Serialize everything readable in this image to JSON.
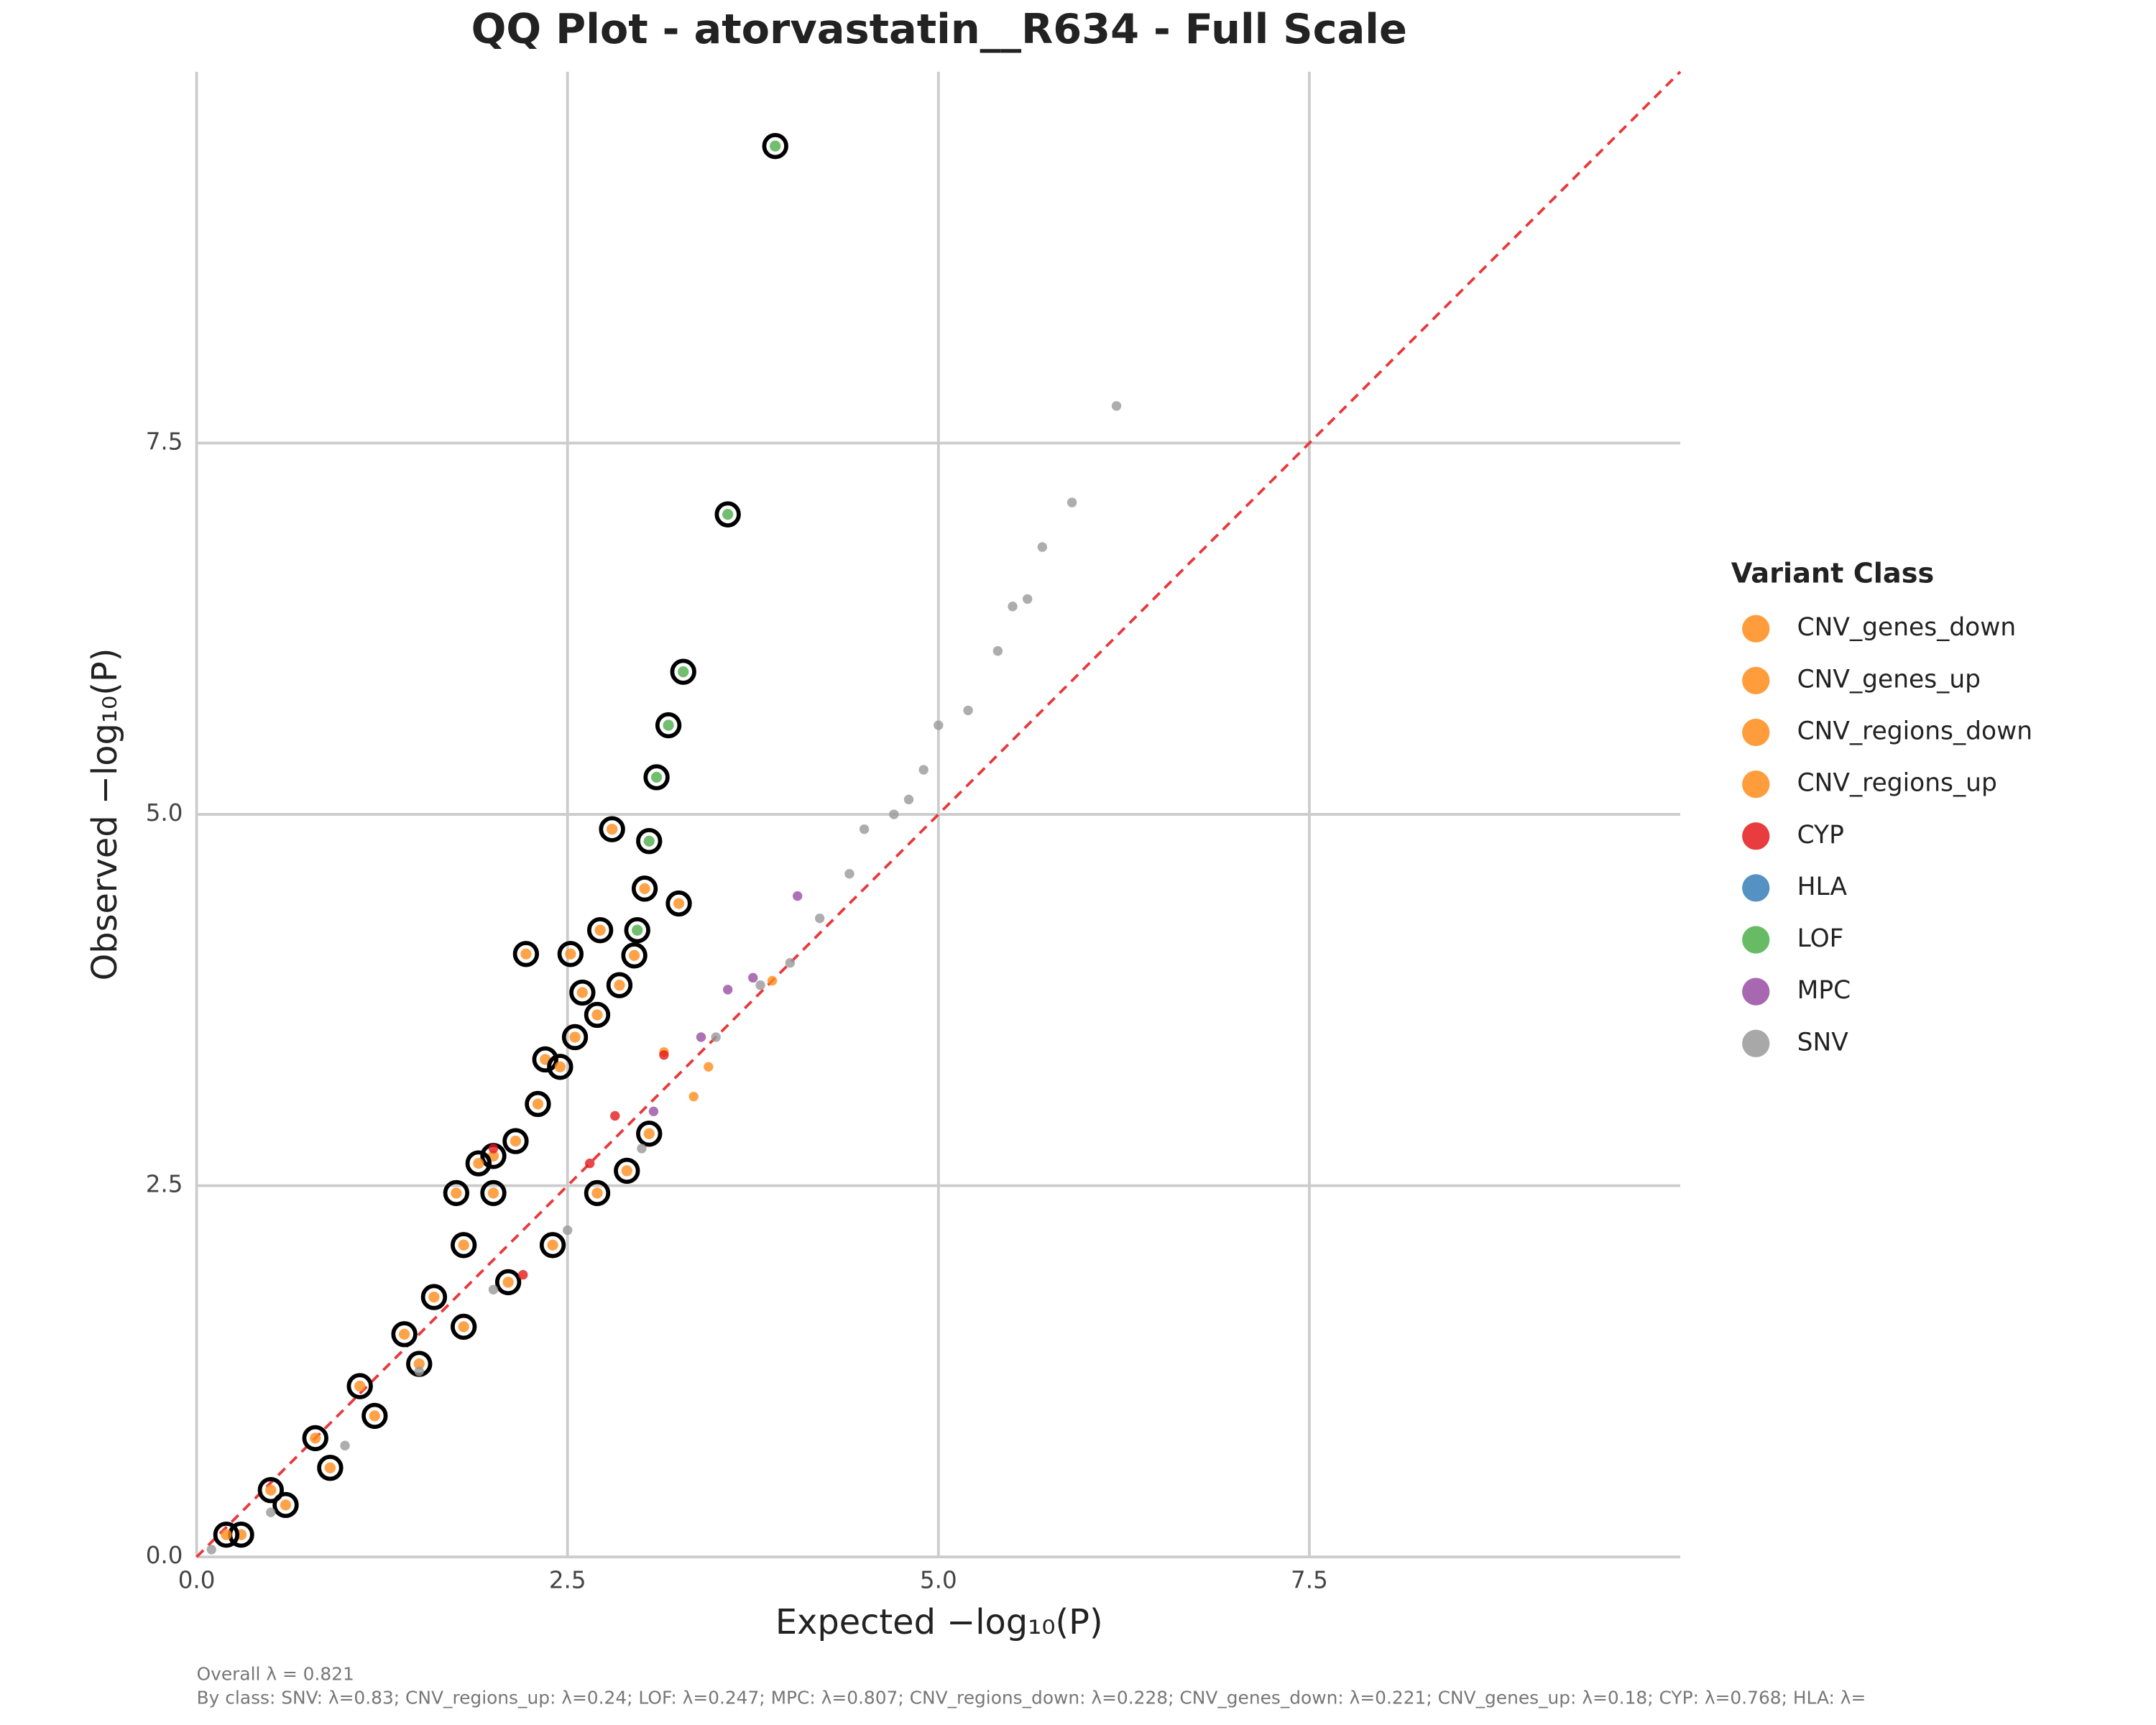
{
  "chart_data": {
    "type": "scatter",
    "title": "QQ Plot - atorvastatin__R634 - Full Scale",
    "xlabel": "Expected −log₁₀(P)",
    "ylabel": "Observed −log₁₀(P)",
    "xlim": [
      0,
      10
    ],
    "ylim": [
      0,
      10
    ],
    "xticks": [
      {
        "value": 0,
        "label": "0.0"
      },
      {
        "value": 2.5,
        "label": "2.5"
      },
      {
        "value": 5,
        "label": "5.0"
      },
      {
        "value": 7.5,
        "label": "7.5"
      }
    ],
    "yticks": [
      {
        "value": 0,
        "label": "0.0"
      },
      {
        "value": 2.5,
        "label": "2.5"
      },
      {
        "value": 5,
        "label": "5.0"
      },
      {
        "value": 7.5,
        "label": "7.5"
      }
    ],
    "grid": true,
    "reference_line": true,
    "legend_title": "Variant Class",
    "legend_position": "right",
    "series": [
      {
        "name": "CNV_genes_down",
        "color": "#ff8c1a",
        "outlined": true,
        "x": [
          2.8,
          3.02,
          3.25,
          2.22,
          2.52,
          2.72,
          2.0,
          1.75,
          1.9,
          2.35,
          2.6
        ],
        "values": [
          4.9,
          4.5,
          4.4,
          4.06,
          4.06,
          4.22,
          2.7,
          2.45,
          2.65,
          3.35,
          3.8
        ]
      },
      {
        "name": "CNV_genes_up",
        "color": "#ff8c1a",
        "outlined": true,
        "x": [
          0.3,
          0.6,
          0.9,
          1.2,
          1.5,
          1.8,
          2.1,
          2.4,
          2.7,
          2.9,
          3.05
        ],
        "values": [
          0.15,
          0.35,
          0.6,
          0.95,
          1.3,
          1.55,
          1.85,
          2.1,
          2.45,
          2.6,
          2.85
        ]
      },
      {
        "name": "CNV_regions_down",
        "color": "#ff8c1a",
        "outlined": true,
        "x": [
          0.2,
          0.5,
          0.8,
          1.1,
          1.4,
          1.6,
          1.8,
          2.0,
          2.15,
          2.3,
          2.45,
          2.55,
          2.7,
          2.85,
          2.95
        ],
        "values": [
          0.15,
          0.45,
          0.8,
          1.15,
          1.5,
          1.75,
          2.1,
          2.45,
          2.8,
          3.05,
          3.3,
          3.5,
          3.65,
          3.85,
          4.05
        ]
      },
      {
        "name": "CNV_regions_up",
        "color": "#ff8c1a",
        "outlined": false,
        "x": [
          3.15,
          3.45,
          3.35,
          3.88
        ],
        "values": [
          3.4,
          3.3,
          3.1,
          3.88
        ]
      },
      {
        "name": "CYP",
        "color": "#e41a1c",
        "outlined": false,
        "x": [
          2.65,
          2.82,
          3.15,
          2.0,
          2.2
        ],
        "values": [
          2.65,
          2.97,
          3.38,
          2.75,
          1.9
        ]
      },
      {
        "name": "HLA",
        "color": "#377eb8",
        "outlined": false,
        "x": [],
        "values": []
      },
      {
        "name": "LOF",
        "color": "#4daf4a",
        "outlined": true,
        "x": [
          3.9,
          3.58,
          3.28,
          3.18,
          3.1,
          3.05,
          2.97
        ],
        "values": [
          9.5,
          7.02,
          5.96,
          5.6,
          5.25,
          4.82,
          4.22
        ]
      },
      {
        "name": "MPC",
        "color": "#984ea3",
        "outlined": false,
        "x": [
          4.05,
          3.75,
          3.4,
          3.58,
          3.08
        ],
        "values": [
          4.45,
          3.9,
          3.5,
          3.82,
          3.0
        ]
      },
      {
        "name": "SNV",
        "color": "#999999",
        "outlined": false,
        "x": [
          0.1,
          0.5,
          1.0,
          1.5,
          2.0,
          2.5,
          3.0,
          3.5,
          3.8,
          4.0,
          4.2,
          4.4,
          4.5,
          4.7,
          4.8,
          4.9,
          5.0,
          5.2,
          5.4,
          5.5,
          5.6,
          5.7,
          5.9,
          6.2
        ],
        "values": [
          0.05,
          0.3,
          0.75,
          1.25,
          1.8,
          2.2,
          2.75,
          3.5,
          3.85,
          4.0,
          4.3,
          4.6,
          4.9,
          5.0,
          5.1,
          5.3,
          5.6,
          5.7,
          6.1,
          6.4,
          6.45,
          6.8,
          7.1,
          7.75
        ]
      }
    ],
    "footnotes": [
      "Overall λ = 0.821",
      "By class: SNV: λ=0.83; CNV_regions_up: λ=0.24; LOF: λ=0.247; MPC: λ=0.807; CNV_regions_down: λ=0.228; CNV_genes_down: λ=0.221; CNV_genes_up: λ=0.18; CYP: λ=0.768; HLA: λ="
    ]
  }
}
